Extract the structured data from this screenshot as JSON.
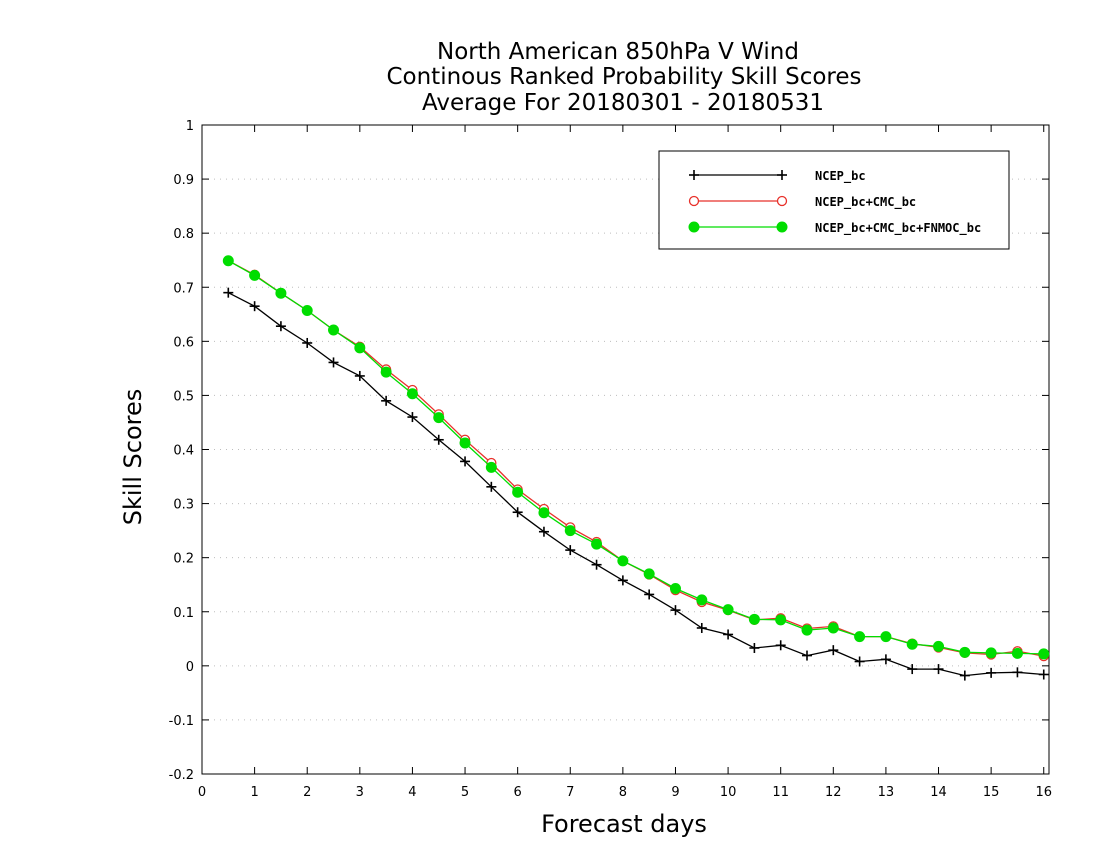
{
  "chart_data": {
    "type": "line",
    "title_lines": [
      "North American 850hPa V Wind",
      "Continous Ranked Probability Skill Scores",
      "Average For 20180301 - 20180531"
    ],
    "xlabel": "Forecast days",
    "ylabel": "Skill Scores",
    "xlim": [
      0,
      16.1
    ],
    "ylim": [
      -0.2,
      1
    ],
    "xticks": [
      0,
      1,
      2,
      3,
      4,
      5,
      6,
      7,
      8,
      9,
      10,
      11,
      12,
      13,
      14,
      15,
      16
    ],
    "yticks": [
      -0.2,
      -0.1,
      0,
      0.1,
      0.2,
      0.3,
      0.4,
      0.5,
      0.6,
      0.7,
      0.8,
      0.9,
      1
    ],
    "ytick_labels": [
      "-0.2",
      "-0.1",
      "0",
      "0.1",
      "0.2",
      "0.3",
      "0.4",
      "0.5",
      "0.6",
      "0.7",
      "0.8",
      "0.9",
      "1"
    ],
    "grid": true,
    "legend_position": "top-right",
    "x": [
      0.5,
      1.0,
      1.5,
      2.0,
      2.5,
      3.0,
      3.5,
      4.0,
      4.5,
      5.0,
      5.5,
      6.0,
      6.5,
      7.0,
      7.5,
      8.0,
      8.5,
      9.0,
      9.5,
      10.0,
      10.5,
      11.0,
      11.5,
      12.0,
      12.5,
      13.0,
      13.5,
      14.0,
      14.5,
      15.0,
      15.5,
      16.0
    ],
    "series": [
      {
        "name": "NCEP_bc",
        "color": "#000000",
        "marker": "plus",
        "values": [
          0.69,
          0.665,
          0.628,
          0.597,
          0.561,
          0.536,
          0.49,
          0.46,
          0.418,
          0.378,
          0.331,
          0.284,
          0.248,
          0.214,
          0.187,
          0.158,
          0.132,
          0.103,
          0.07,
          0.058,
          0.033,
          0.038,
          0.019,
          0.029,
          0.008,
          0.012,
          -0.006,
          -0.006,
          -0.018,
          -0.013,
          -0.012,
          -0.016
        ]
      },
      {
        "name": "NCEP_bc+CMC_bc",
        "color": "#e8302a",
        "marker": "open-circle",
        "values": [
          0.749,
          0.723,
          0.689,
          0.657,
          0.621,
          0.59,
          0.548,
          0.51,
          0.465,
          0.418,
          0.375,
          0.326,
          0.29,
          0.256,
          0.229,
          0.194,
          0.169,
          0.14,
          0.118,
          0.103,
          0.085,
          0.088,
          0.069,
          0.073,
          0.054,
          0.054,
          0.041,
          0.034,
          0.024,
          0.021,
          0.027,
          0.018
        ]
      },
      {
        "name": "NCEP_bc+CMC_bc+FNMOC_bc",
        "color": "#00dd00",
        "marker": "filled-circle",
        "values": [
          0.749,
          0.722,
          0.689,
          0.657,
          0.621,
          0.588,
          0.543,
          0.503,
          0.459,
          0.412,
          0.367,
          0.321,
          0.283,
          0.25,
          0.225,
          0.194,
          0.17,
          0.143,
          0.122,
          0.104,
          0.086,
          0.085,
          0.066,
          0.07,
          0.054,
          0.054,
          0.04,
          0.036,
          0.025,
          0.024,
          0.023,
          0.022
        ]
      }
    ]
  }
}
